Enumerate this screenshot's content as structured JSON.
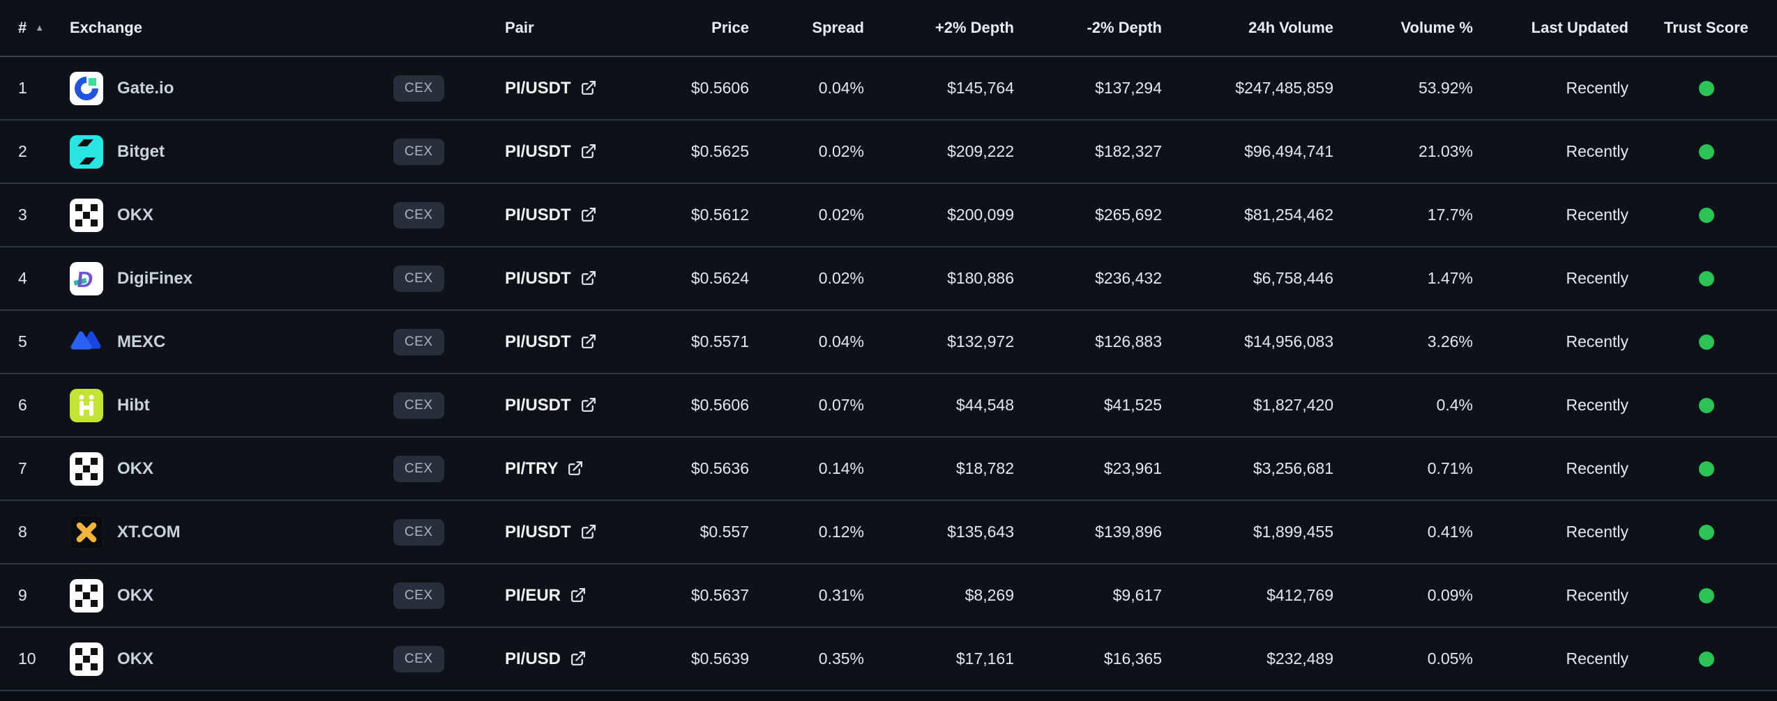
{
  "table": {
    "sort_icon": "▲",
    "columns": [
      {
        "label": "#"
      },
      {
        "label": "Exchange"
      },
      {
        "label": ""
      },
      {
        "label": "Pair"
      },
      {
        "label": "Price"
      },
      {
        "label": "Spread"
      },
      {
        "label": "+2% Depth"
      },
      {
        "label": "-2% Depth"
      },
      {
        "label": "24h Volume"
      },
      {
        "label": "Volume %"
      },
      {
        "label": "Last Updated"
      },
      {
        "label": "Trust Score"
      }
    ]
  },
  "rows": [
    {
      "rank": "1",
      "exchange": "Gate.io",
      "logo": "gateio-logo",
      "type": "CEX",
      "pair": "PI/USDT",
      "price": "$0.5606",
      "spread": "0.04%",
      "depth_plus2": "$145,764",
      "depth_minus2": "$137,294",
      "volume_24h": "$247,485,859",
      "volume_pct": "53.92%",
      "last_updated": "Recently",
      "trust_score": "green"
    },
    {
      "rank": "2",
      "exchange": "Bitget",
      "logo": "bitget-logo",
      "type": "CEX",
      "pair": "PI/USDT",
      "price": "$0.5625",
      "spread": "0.02%",
      "depth_plus2": "$209,222",
      "depth_minus2": "$182,327",
      "volume_24h": "$96,494,741",
      "volume_pct": "21.03%",
      "last_updated": "Recently",
      "trust_score": "green"
    },
    {
      "rank": "3",
      "exchange": "OKX",
      "logo": "okx-logo",
      "type": "CEX",
      "pair": "PI/USDT",
      "price": "$0.5612",
      "spread": "0.02%",
      "depth_plus2": "$200,099",
      "depth_minus2": "$265,692",
      "volume_24h": "$81,254,462",
      "volume_pct": "17.7%",
      "last_updated": "Recently",
      "trust_score": "green"
    },
    {
      "rank": "4",
      "exchange": "DigiFinex",
      "logo": "digifinex-logo",
      "type": "CEX",
      "pair": "PI/USDT",
      "price": "$0.5624",
      "spread": "0.02%",
      "depth_plus2": "$180,886",
      "depth_minus2": "$236,432",
      "volume_24h": "$6,758,446",
      "volume_pct": "1.47%",
      "last_updated": "Recently",
      "trust_score": "green"
    },
    {
      "rank": "5",
      "exchange": "MEXC",
      "logo": "mexc-logo",
      "type": "CEX",
      "pair": "PI/USDT",
      "price": "$0.5571",
      "spread": "0.04%",
      "depth_plus2": "$132,972",
      "depth_minus2": "$126,883",
      "volume_24h": "$14,956,083",
      "volume_pct": "3.26%",
      "last_updated": "Recently",
      "trust_score": "green"
    },
    {
      "rank": "6",
      "exchange": "Hibt",
      "logo": "hibt-logo",
      "type": "CEX",
      "pair": "PI/USDT",
      "price": "$0.5606",
      "spread": "0.07%",
      "depth_plus2": "$44,548",
      "depth_minus2": "$41,525",
      "volume_24h": "$1,827,420",
      "volume_pct": "0.4%",
      "last_updated": "Recently",
      "trust_score": "green"
    },
    {
      "rank": "7",
      "exchange": "OKX",
      "logo": "okx-logo",
      "type": "CEX",
      "pair": "PI/TRY",
      "price": "$0.5636",
      "spread": "0.14%",
      "depth_plus2": "$18,782",
      "depth_minus2": "$23,961",
      "volume_24h": "$3,256,681",
      "volume_pct": "0.71%",
      "last_updated": "Recently",
      "trust_score": "green"
    },
    {
      "rank": "8",
      "exchange": "XT.COM",
      "logo": "xt-logo",
      "type": "CEX",
      "pair": "PI/USDT",
      "price": "$0.557",
      "spread": "0.12%",
      "depth_plus2": "$135,643",
      "depth_minus2": "$139,896",
      "volume_24h": "$1,899,455",
      "volume_pct": "0.41%",
      "last_updated": "Recently",
      "trust_score": "green"
    },
    {
      "rank": "9",
      "exchange": "OKX",
      "logo": "okx-logo",
      "type": "CEX",
      "pair": "PI/EUR",
      "price": "$0.5637",
      "spread": "0.31%",
      "depth_plus2": "$8,269",
      "depth_minus2": "$9,617",
      "volume_24h": "$412,769",
      "volume_pct": "0.09%",
      "last_updated": "Recently",
      "trust_score": "green"
    },
    {
      "rank": "10",
      "exchange": "OKX",
      "logo": "okx-logo",
      "type": "CEX",
      "pair": "PI/USD",
      "price": "$0.5639",
      "spread": "0.35%",
      "depth_plus2": "$17,161",
      "depth_minus2": "$16,365",
      "volume_24h": "$232,489",
      "volume_pct": "0.05%",
      "last_updated": "Recently",
      "trust_score": "green"
    }
  ],
  "colors": {
    "background": "#0d1219",
    "row_border": "#2c3644",
    "badge_bg": "#272f3b",
    "trust": {
      "green": "#2bc356"
    }
  }
}
